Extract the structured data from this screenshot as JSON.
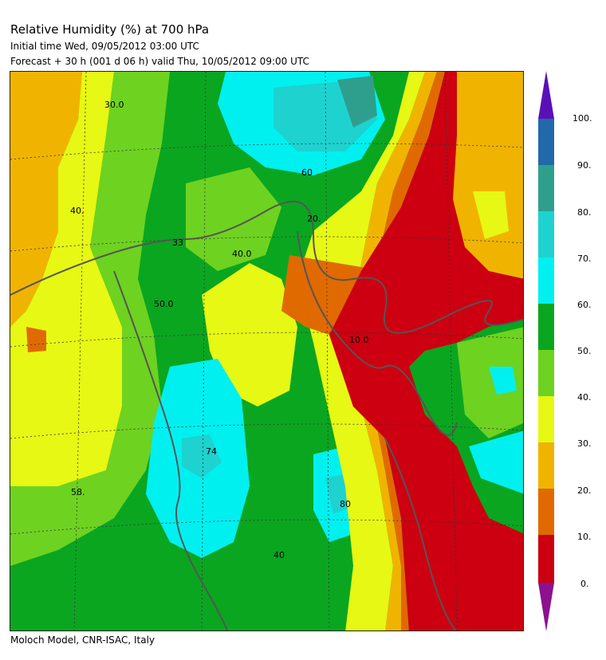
{
  "header": {
    "title": "Relative Humidity (%) at 700 hPa",
    "initial_time": "Initial time  Wed, 09/05/2012  03:00 UTC",
    "forecast": "Forecast  +  30 h  (001 d 06 h)  valid Thu, 10/05/2012 09:00 UTC"
  },
  "footer": {
    "credit": "Moloch Model, CNR-ISAC, Italy"
  },
  "colorbar": {
    "labels": [
      "100.",
      "90.",
      "80.",
      "70.",
      "60.",
      "50.",
      "40.",
      "30.",
      "20.",
      "10.",
      "0."
    ],
    "colors": {
      "over": "#5a10b8",
      "90_100": "#2169a8",
      "80_90": "#2f9f8d",
      "70_80": "#1ed2cf",
      "60_70": "#00f0f0",
      "50_60": "#0aa620",
      "40_50": "#6ed220",
      "30_40": "#e6f814",
      "20_30": "#f0b400",
      "10_20": "#e06a00",
      "0_10": "#cc0010",
      "under": "#8c1090"
    }
  },
  "map_labels": [
    {
      "text": "30.0"
    },
    {
      "text": "40."
    },
    {
      "text": "20."
    },
    {
      "text": "33"
    },
    {
      "text": "40.0"
    },
    {
      "text": "50.0"
    },
    {
      "text": "74"
    },
    {
      "text": "58."
    },
    {
      "text": "80"
    },
    {
      "text": "10.0"
    },
    {
      "text": "60"
    },
    {
      "text": "40"
    }
  ]
}
